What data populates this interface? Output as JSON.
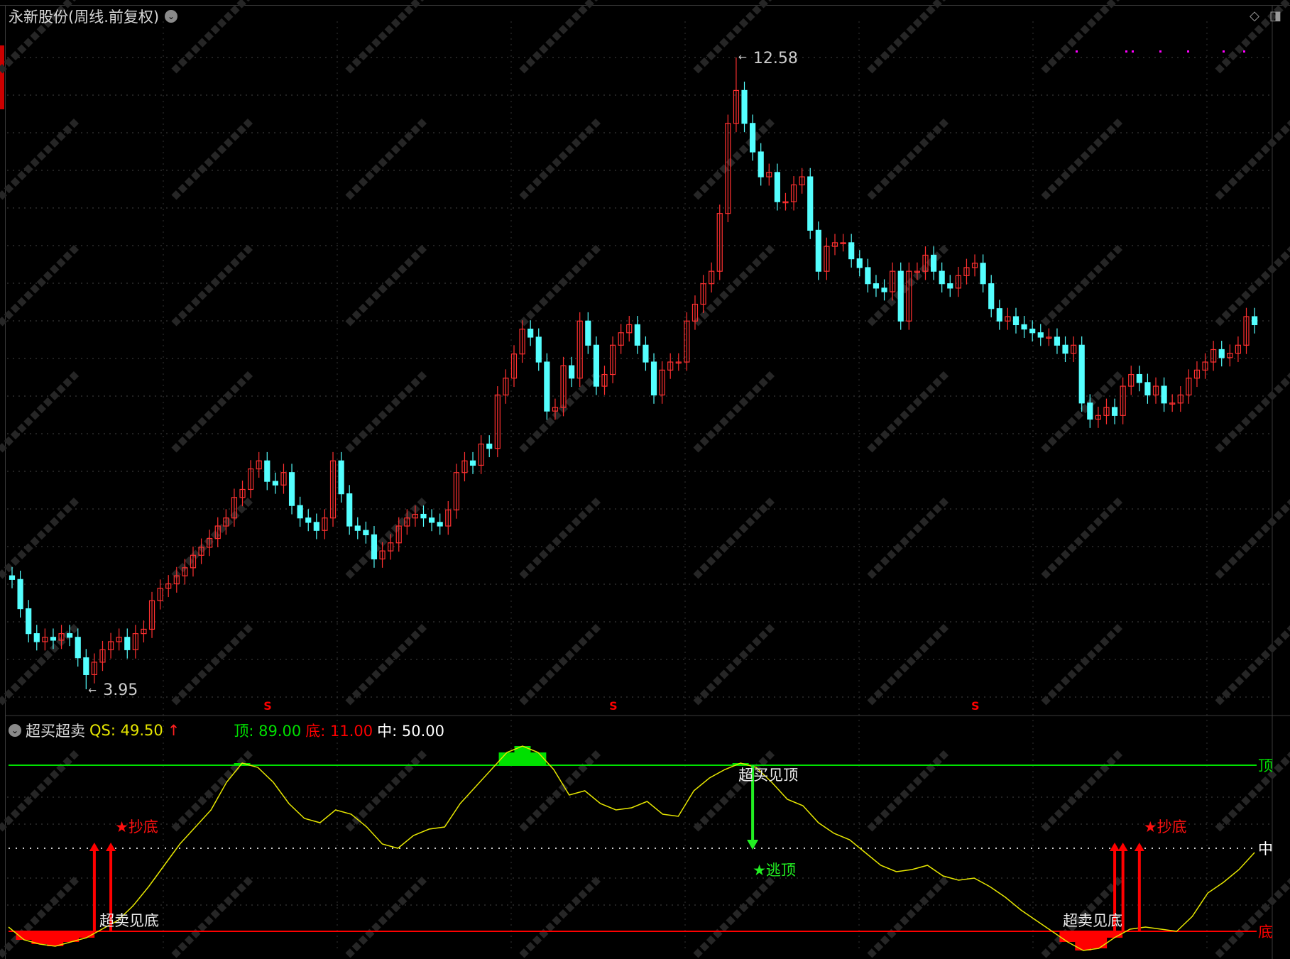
{
  "header": {
    "title": "永新股份(周线.前复权)",
    "dropdown_icon": "chevron-down-circle-icon"
  },
  "top_icons": [
    "diamond-icon",
    "panel-toggle-icon"
  ],
  "watermark": "www.cfchi.com",
  "colors": {
    "up": "#ff3030",
    "down": "#54ffff",
    "top_line": "#00e000",
    "bottom_line": "#ff0000",
    "qs_line": "#e6e600",
    "mid_line": "#cccccc",
    "signal_s": "#ff0000",
    "dots": "#ff00ff"
  },
  "price_chart": {
    "high_label": "12.58",
    "low_label": "3.95",
    "high": 12.58,
    "high_index": 88,
    "low": 3.95,
    "low_index": 9,
    "s_marker": "S",
    "s_marker_indices": [
      31,
      73,
      117
    ],
    "closes": [
      5.45,
      5.05,
      4.71,
      4.6,
      4.66,
      4.62,
      4.71,
      4.66,
      4.38,
      4.15,
      4.32,
      4.49,
      4.6,
      4.66,
      4.49,
      4.71,
      4.77,
      5.16,
      5.33,
      5.39,
      5.5,
      5.61,
      5.78,
      5.89,
      6.01,
      6.18,
      6.29,
      6.57,
      6.68,
      6.96,
      7.07,
      6.79,
      6.74,
      6.91,
      6.46,
      6.29,
      6.23,
      6.12,
      6.29,
      7.07,
      6.62,
      6.18,
      6.12,
      6.06,
      5.73,
      5.84,
      5.95,
      6.18,
      6.29,
      6.34,
      6.29,
      6.23,
      6.18,
      6.4,
      6.91,
      7.07,
      7.01,
      7.3,
      7.24,
      7.97,
      8.2,
      8.53,
      8.87,
      8.76,
      8.42,
      7.75,
      7.8,
      8.37,
      8.2,
      8.98,
      8.65,
      8.09,
      8.25,
      8.65,
      8.82,
      8.93,
      8.65,
      8.42,
      7.97,
      8.31,
      8.42,
      8.42,
      8.98,
      9.21,
      9.49,
      9.66,
      10.45,
      11.68,
      12.13,
      11.68,
      11.29,
      10.95,
      11.01,
      10.61,
      10.61,
      10.84,
      10.95,
      10.22,
      9.66,
      10.0,
      10.05,
      10.05,
      9.83,
      9.71,
      9.49,
      9.43,
      9.38,
      9.66,
      8.98,
      9.66,
      9.66,
      9.88,
      9.66,
      9.49,
      9.43,
      9.6,
      9.71,
      9.77,
      9.49,
      9.15,
      8.98,
      9.04,
      8.93,
      8.87,
      8.82,
      8.76,
      8.76,
      8.65,
      8.54,
      8.65,
      7.86,
      7.64,
      7.69,
      7.8,
      7.69,
      8.09,
      8.25,
      8.14,
      7.97,
      8.09,
      7.86,
      7.86,
      7.97,
      8.2,
      8.31,
      8.42,
      8.59,
      8.48,
      8.54,
      8.65,
      9.04,
      8.93
    ]
  },
  "indicator": {
    "name": "超买超卖",
    "qs_label": "QS: 49.50",
    "qs_arrow": "↑",
    "top_label": "顶: 89.00",
    "bottom_label": "底: 11.00",
    "mid_label": "中: 50.00",
    "top": 89,
    "bottom": 11,
    "mid": 50,
    "top_tag": "顶",
    "bottom_tag": "底",
    "mid_tag": "中",
    "qs": [
      13,
      7,
      5,
      4,
      6,
      8,
      12,
      16,
      23,
      32,
      42,
      52,
      60,
      68,
      81,
      90,
      88,
      81,
      71,
      64,
      62,
      68,
      66,
      60,
      52,
      50,
      56,
      59,
      60,
      71,
      79,
      87,
      95,
      98,
      95,
      87,
      75,
      77,
      71,
      68,
      69,
      72,
      66,
      65,
      77,
      83,
      87,
      90,
      88,
      81,
      73,
      70,
      62,
      57,
      54,
      48,
      42,
      39,
      40,
      42,
      37,
      35,
      36,
      32,
      27,
      21,
      16,
      11,
      6,
      2,
      3,
      8,
      12,
      13,
      12,
      11,
      18,
      29,
      34,
      40,
      48
    ],
    "buy_signal_label": "★抄底",
    "buy_signal_indices_left": [
      10,
      12
    ],
    "buy_signal_indices_right": [
      134,
      135,
      137
    ],
    "sell_signal_label": "★逃顶",
    "sell_signal_index": 90,
    "oversold_label": "超卖见底",
    "overbought_label": "超买见顶"
  }
}
